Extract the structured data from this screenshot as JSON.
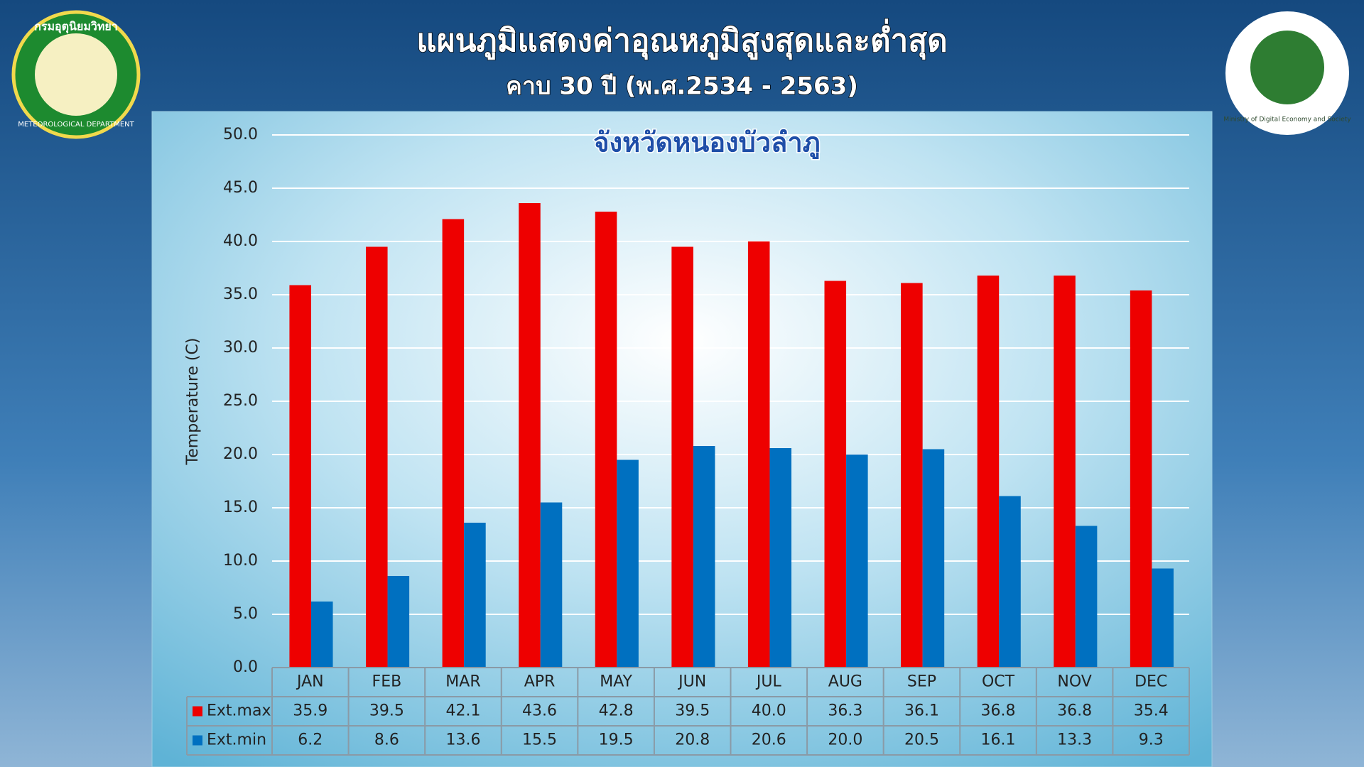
{
  "header": {
    "title": "แผนภูมิแสดงค่าอุณหภูมิสูงสุดและต่ำสุด",
    "subtitle": "คาบ 30 ปี (พ.ศ.2534 - 2563)"
  },
  "logos": {
    "left_top": "กรมอุตุนิยมวิทยา",
    "left_bottom": "METEOROLOGICAL DEPARTMENT",
    "right": "Ministry of Digital Economy and Society"
  },
  "chart_data": {
    "type": "bar",
    "title": "จังหวัดหนองบัวลำภู",
    "y_label": "Temperature (C)",
    "categories": [
      "JAN",
      "FEB",
      "MAR",
      "APR",
      "MAY",
      "JUN",
      "JUL",
      "AUG",
      "SEP",
      "OCT",
      "NOV",
      "DEC"
    ],
    "series": [
      {
        "name": "Ext.max",
        "color": "#ee0000",
        "values": [
          35.9,
          39.5,
          42.1,
          43.6,
          42.8,
          39.5,
          40.0,
          36.3,
          36.1,
          36.8,
          36.8,
          35.4
        ],
        "value_labels": [
          "35.9",
          "39.5",
          "42.1",
          "43.6",
          "42.8",
          "39.5",
          "40.0",
          "36.3",
          "36.1",
          "36.8",
          "36.8",
          "35.4"
        ]
      },
      {
        "name": "Ext.min",
        "color": "#0070c0",
        "values": [
          6.2,
          8.6,
          13.6,
          15.5,
          19.5,
          20.8,
          20.6,
          20.0,
          20.5,
          16.1,
          13.3,
          9.3
        ],
        "value_labels": [
          "6.2",
          "8.6",
          "13.6",
          "15.5",
          "19.5",
          "20.8",
          "20.6",
          "20.0",
          "20.5",
          "16.1",
          "13.3",
          "9.3"
        ]
      }
    ],
    "ylim": [
      0,
      50
    ],
    "yticks": [
      {
        "value": 0,
        "label": "0.0"
      },
      {
        "value": 5,
        "label": "5.0"
      },
      {
        "value": 10,
        "label": "10.0"
      },
      {
        "value": 15,
        "label": "15.0"
      },
      {
        "value": 20,
        "label": "20.0"
      },
      {
        "value": 25,
        "label": "25.0"
      },
      {
        "value": 30,
        "label": "30.0"
      },
      {
        "value": 35,
        "label": "35.0"
      },
      {
        "value": 40,
        "label": "40.0"
      },
      {
        "value": 45,
        "label": "45.0"
      },
      {
        "value": 50,
        "label": "50.0"
      }
    ],
    "grid": true
  }
}
